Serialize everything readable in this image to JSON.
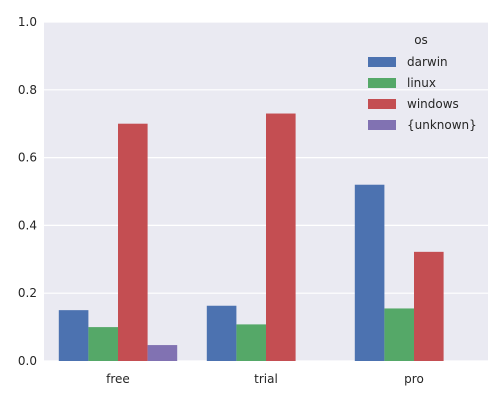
{
  "chart_data": {
    "type": "bar",
    "categories": [
      "free",
      "trial",
      "pro"
    ],
    "legend": {
      "title": "os",
      "position": "top-right"
    },
    "series": [
      {
        "name": "darwin",
        "color": "#4c72b0",
        "values": [
          0.15,
          0.163,
          0.52
        ]
      },
      {
        "name": "linux",
        "color": "#55a868",
        "values": [
          0.1,
          0.108,
          0.155
        ]
      },
      {
        "name": "windows",
        "color": "#c44e52",
        "values": [
          0.7,
          0.73,
          0.322
        ]
      },
      {
        "name": "{unknown}",
        "color": "#8172b2",
        "values": [
          0.047,
          0,
          0
        ]
      }
    ],
    "yticks": [
      "0.0",
      "0.2",
      "0.4",
      "0.6",
      "0.8",
      "1.0"
    ],
    "ylim": [
      0,
      1.0
    ],
    "grid": true,
    "background": "#eaeaf2",
    "xlabel": "",
    "ylabel": ""
  }
}
